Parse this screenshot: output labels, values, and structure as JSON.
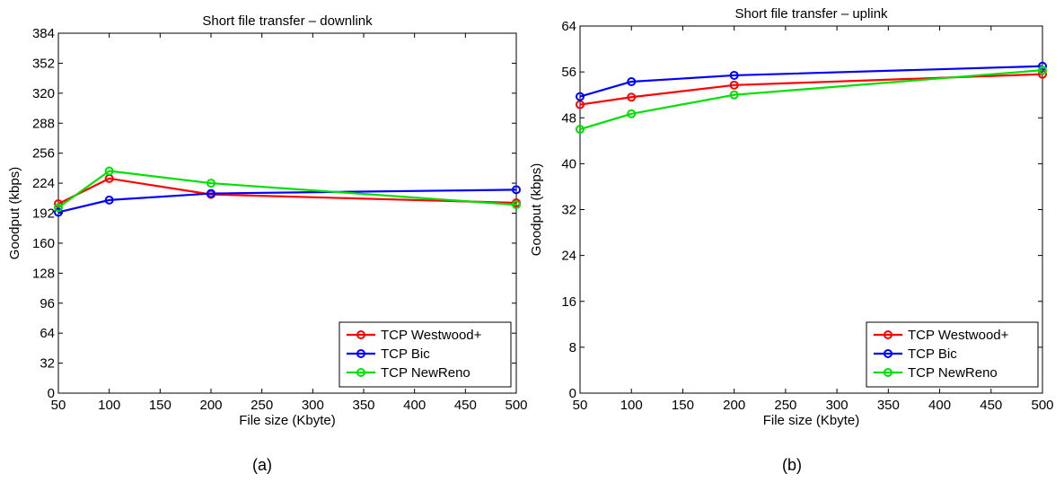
{
  "chart_data": [
    {
      "type": "line",
      "title": "Short file transfer – downlink",
      "xlabel": "File size (Kbyte)",
      "ylabel": "Goodput (kbps)",
      "xlim": [
        50,
        500
      ],
      "ylim": [
        0,
        384
      ],
      "xticks": [
        50,
        100,
        150,
        200,
        250,
        300,
        350,
        400,
        450,
        500
      ],
      "yticks": [
        0,
        32,
        64,
        96,
        128,
        160,
        192,
        224,
        256,
        288,
        320,
        352,
        384
      ],
      "grid": false,
      "legend_position": "bottom-right",
      "x": [
        50,
        100,
        200,
        500
      ],
      "series": [
        {
          "name": "TCP Westwood+",
          "color": "#ff0000",
          "values": [
            202,
            229,
            212,
            203
          ]
        },
        {
          "name": "TCP Bic",
          "color": "#0000ff",
          "values": [
            193,
            206,
            213,
            217
          ]
        },
        {
          "name": "TCP NewReno",
          "color": "#00e000",
          "values": [
            198,
            237,
            224,
            201
          ]
        }
      ],
      "caption": "(a)"
    },
    {
      "type": "line",
      "title": "Short file transfer – uplink",
      "xlabel": "File size (Kbyte)",
      "ylabel": "Goodput (kbps)",
      "xlim": [
        50,
        500
      ],
      "ylim": [
        0,
        64
      ],
      "xticks": [
        50,
        100,
        150,
        200,
        250,
        300,
        350,
        400,
        450,
        500
      ],
      "yticks": [
        0,
        8,
        16,
        24,
        32,
        40,
        48,
        56,
        64
      ],
      "grid": false,
      "legend_position": "bottom-right",
      "x": [
        50,
        100,
        200,
        500
      ],
      "series": [
        {
          "name": "TCP Westwood+",
          "color": "#ff0000",
          "values": [
            50.3,
            51.6,
            53.7,
            55.6
          ]
        },
        {
          "name": "TCP Bic",
          "color": "#0000ff",
          "values": [
            51.7,
            54.3,
            55.4,
            57.0
          ]
        },
        {
          "name": "TCP NewReno",
          "color": "#00e000",
          "values": [
            46.0,
            48.7,
            52.0,
            56.3
          ]
        }
      ],
      "caption": "(b)"
    }
  ]
}
